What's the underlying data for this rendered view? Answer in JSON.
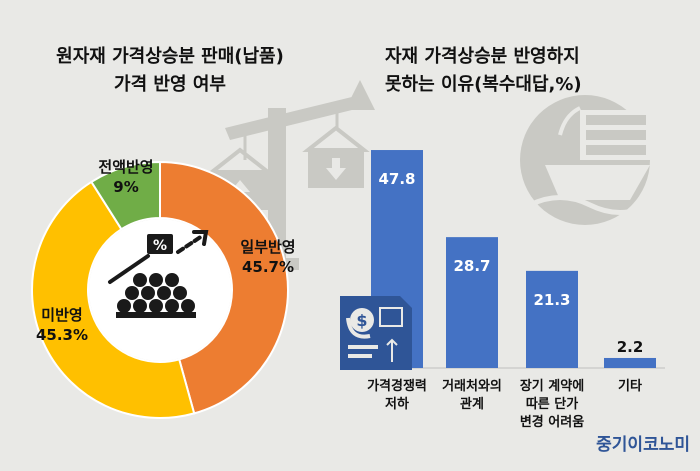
{
  "chart_data": [
    {
      "type": "pie",
      "title_lines": [
        "원자재 가격상승분 판매(납품)",
        "가격 반영 여부"
      ],
      "slices": [
        {
          "label": "일부반영",
          "value": 45.7,
          "value_text": "45.7%",
          "color": "#ed7d31"
        },
        {
          "label": "미반영",
          "value": 45.3,
          "value_text": "45.3%",
          "color": "#ffc000"
        },
        {
          "label": "전액반영",
          "value": 9,
          "value_text": "9%",
          "color": "#70ad47"
        }
      ]
    },
    {
      "type": "bar",
      "title_lines": [
        "자재 가격상승분 반영하지",
        "못하는 이유(복수대답,%)"
      ],
      "categories": [
        [
          "가격경쟁력",
          "저하"
        ],
        [
          "거래처와의",
          "관계"
        ],
        [
          "장기 계약에",
          "따른 단가",
          "변경 어려움"
        ],
        [
          "기타"
        ]
      ],
      "values": [
        47.8,
        28.7,
        21.3,
        2.2
      ],
      "value_labels": [
        "47.8",
        "28.7",
        "21.3",
        "2.2"
      ],
      "bar_color": "#4472c4",
      "ylim": [
        0,
        50
      ]
    }
  ],
  "brand": {
    "text": "중기이코노미",
    "color": "#2f5597"
  },
  "colors": {
    "background": "#e9e9e6",
    "decoration": "#c9c9c4",
    "icon": "#1a1a1a"
  },
  "icons": [
    "crane-icon",
    "container-up-icon",
    "container-down-icon",
    "globe-cargo-icon",
    "pipes-icon",
    "price-tag-icon",
    "trend-arrow-icon",
    "money-document-icon"
  ]
}
